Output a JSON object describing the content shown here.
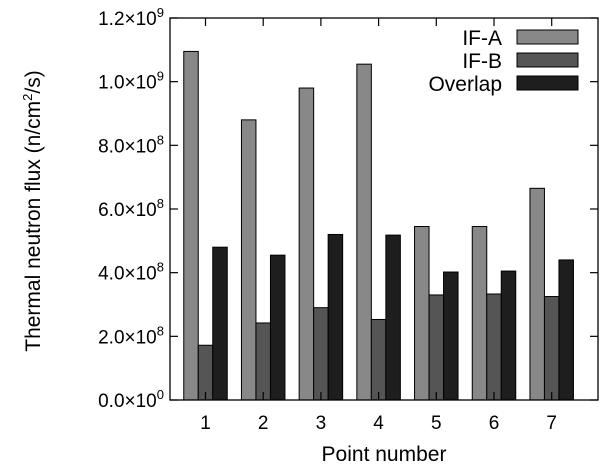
{
  "chart_data": {
    "type": "bar",
    "xlabel": "Point number",
    "ylabel": {
      "main": "Thermal neutron flux (n/cm",
      "sup": "2",
      "tail": "/s)"
    },
    "ylim": [
      0,
      1200000000
    ],
    "yticks": [
      {
        "value": 0,
        "mantissa": "0.0",
        "exp": "0"
      },
      {
        "value": 200000000,
        "mantissa": "2.0",
        "exp": "8"
      },
      {
        "value": 400000000,
        "mantissa": "4.0",
        "exp": "8"
      },
      {
        "value": 600000000,
        "mantissa": "6.0",
        "exp": "8"
      },
      {
        "value": 800000000,
        "mantissa": "8.0",
        "exp": "8"
      },
      {
        "value": 1000000000,
        "mantissa": "1.0",
        "exp": "9"
      },
      {
        "value": 1200000000,
        "mantissa": "1.2",
        "exp": "9"
      }
    ],
    "categories": [
      "1",
      "2",
      "3",
      "4",
      "5",
      "6",
      "7"
    ],
    "series": [
      {
        "name": "IF-A",
        "color": "#888888",
        "values": [
          1095000000,
          880000000,
          980000000,
          1055000000,
          545000000,
          545000000,
          665000000
        ]
      },
      {
        "name": "IF-B",
        "color": "#555555",
        "values": [
          172000000,
          242000000,
          290000000,
          253000000,
          330000000,
          333000000,
          325000000
        ]
      },
      {
        "name": "Overlap",
        "color": "#1e1e1e",
        "values": [
          480000000,
          455000000,
          520000000,
          518000000,
          402000000,
          405000000,
          440000000
        ]
      }
    ],
    "legend": "top-right",
    "grid": false
  }
}
